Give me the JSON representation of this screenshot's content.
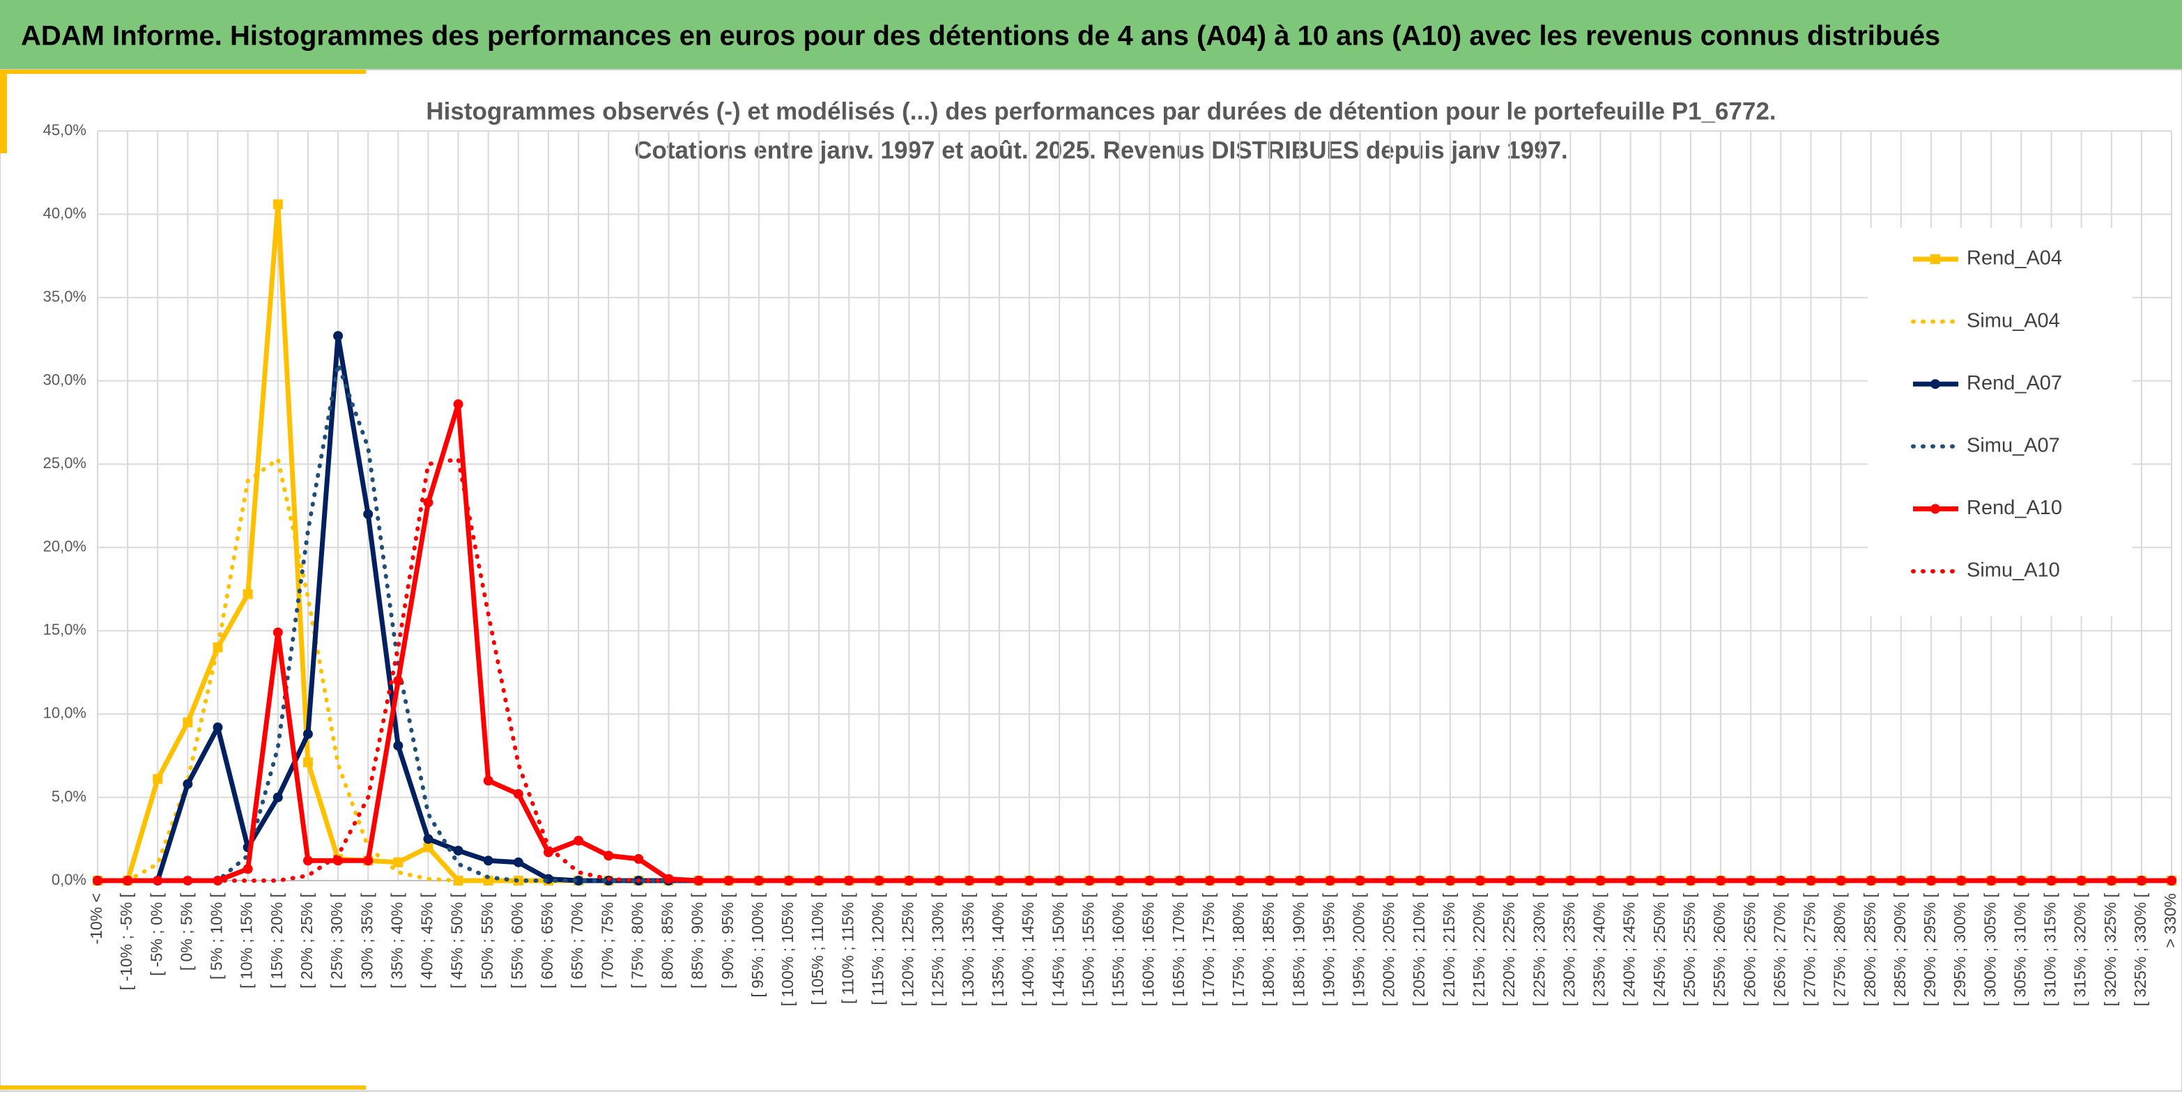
{
  "header": {
    "title": "ADAM Informe. Histogrammes des performances en euros pour des détentions de 4 ans (A04) à 10 ans (A10) avec les revenus connus distribués"
  },
  "chart_data": {
    "type": "line",
    "title_lines": [
      "Histogrammes observés (-) et modélisés (...) des performances par durées de détention pour le portefeuille P1_6772.",
      "Cotations entre janv. 1997 et août. 2025. Revenus DISTRIBUES depuis janv 1997."
    ],
    "categories": [
      "-10% <",
      "[ -10% ; -5% [",
      "[ -5% ; 0% [",
      "[ 0% ; 5% [",
      "[ 5% ; 10% [",
      "[ 10% ; 15% [",
      "[ 15% ; 20% [",
      "[ 20% ; 25% [",
      "[ 25% ; 30% [",
      "[ 30% ; 35% [",
      "[ 35% ; 40% [",
      "[ 40% ; 45% [",
      "[ 45% ; 50% [",
      "[ 50% ; 55% [",
      "[ 55% ; 60% [",
      "[ 60% ; 65% [",
      "[ 65% ; 70% [",
      "[ 70% ; 75% [",
      "[ 75% ; 80% [",
      "[ 80% ; 85% [",
      "[ 85% ; 90% [",
      "[ 90% ; 95% [",
      "[ 95% ; 100% [",
      "[ 100% ; 105% [",
      "[ 105% ; 110% [",
      "[ 110% ; 115% [",
      "[ 115% ; 120% [",
      "[ 120% ; 125% [",
      "[ 125% ; 130% [",
      "[ 130% ; 135% [",
      "[ 135% ; 140% [",
      "[ 140% ; 145% [",
      "[ 145% ; 150% [",
      "[ 150% ; 155% [",
      "[ 155% ; 160% [",
      "[ 160% ; 165% [",
      "[ 165% ; 170% [",
      "[ 170% ; 175% [",
      "[ 175% ; 180% [",
      "[ 180% ; 185% [",
      "[ 185% ; 190% [",
      "[ 190% ; 195% [",
      "[ 195% ; 200% [",
      "[ 200% ; 205% [",
      "[ 205% ; 210% [",
      "[ 210% ; 215% [",
      "[ 215% ; 220% [",
      "[ 220% ; 225% [",
      "[ 225% ; 230% [",
      "[ 230% ; 235% [",
      "[ 235% ; 240% [",
      "[ 240% ; 245% [",
      "[ 245% ; 250% [",
      "[ 250% ; 255% [",
      "[ 255% ; 260% [",
      "[ 260% ; 265% [",
      "[ 265% ; 270% [",
      "[ 270% ; 275% [",
      "[ 275% ; 280% [",
      "[ 280% ; 285% [",
      "[ 285% ; 290% [",
      "[ 290% ; 295% [",
      "[ 295% ; 300% [",
      "[ 300% ; 305% [",
      "[ 305% ; 310% [",
      "[ 310% ; 315% [",
      "[ 315% ; 320% [",
      "[ 320% ; 325% [",
      "[ 325% ; 330% [",
      "> 330%"
    ],
    "series": [
      {
        "name": "Rend_A04",
        "color": "#FFC000",
        "dash": "solid",
        "marker": "square",
        "values": [
          0,
          0,
          6.1,
          9.5,
          14,
          17.2,
          40.6,
          7.1,
          1.3,
          1.2,
          1.1,
          2,
          0,
          0,
          0,
          0,
          0,
          0,
          0,
          0,
          0,
          0,
          0,
          0,
          0,
          0,
          0,
          0,
          0,
          0,
          0,
          0,
          0,
          0,
          0,
          0,
          0,
          0,
          0,
          0,
          0,
          0,
          0,
          0,
          0,
          0,
          0,
          0,
          0,
          0,
          0,
          0,
          0,
          0,
          0,
          0,
          0,
          0,
          0,
          0,
          0,
          0,
          0,
          0,
          0,
          0,
          0,
          0,
          0,
          0
        ]
      },
      {
        "name": "Simu_A04",
        "color": "#FFC000",
        "dash": "dotted",
        "marker": null,
        "values": [
          0,
          0,
          1,
          6,
          14,
          24,
          25.3,
          17,
          7,
          2,
          0.5,
          0.1,
          0,
          0,
          0,
          0,
          0,
          0,
          0,
          0,
          0,
          0,
          0,
          0,
          0,
          0,
          0,
          0,
          0,
          0,
          0,
          0,
          0,
          0,
          0,
          0,
          0,
          0,
          0,
          0,
          0,
          0,
          0,
          0,
          0,
          0,
          0,
          0,
          0,
          0,
          0,
          0,
          0,
          0,
          0,
          0,
          0,
          0,
          0,
          0,
          0,
          0,
          0,
          0,
          0,
          0,
          0,
          0,
          0,
          0
        ]
      },
      {
        "name": "Rend_A07",
        "color": "#002060",
        "dash": "solid",
        "marker": "circle",
        "values": [
          0,
          0,
          0,
          5.8,
          9.2,
          2,
          5,
          8.8,
          32.7,
          22,
          8.1,
          2.5,
          1.8,
          1.2,
          1.1,
          0.1,
          0,
          0,
          0,
          0,
          0,
          0,
          0,
          0,
          0,
          0,
          0,
          0,
          0,
          0,
          0,
          0,
          0,
          0,
          0,
          0,
          0,
          0,
          0,
          0,
          0,
          0,
          0,
          0,
          0,
          0,
          0,
          0,
          0,
          0,
          0,
          0,
          0,
          0,
          0,
          0,
          0,
          0,
          0,
          0,
          0,
          0,
          0,
          0,
          0,
          0,
          0,
          0,
          0,
          0
        ]
      },
      {
        "name": "Simu_A07",
        "color": "#1F4E79",
        "dash": "dotted",
        "marker": null,
        "values": [
          0,
          0,
          0,
          0,
          0,
          1.5,
          8,
          21,
          31,
          26,
          13,
          4,
          1,
          0.2,
          0,
          0,
          0,
          0,
          0,
          0,
          0,
          0,
          0,
          0,
          0,
          0,
          0,
          0,
          0,
          0,
          0,
          0,
          0,
          0,
          0,
          0,
          0,
          0,
          0,
          0,
          0,
          0,
          0,
          0,
          0,
          0,
          0,
          0,
          0,
          0,
          0,
          0,
          0,
          0,
          0,
          0,
          0,
          0,
          0,
          0,
          0,
          0,
          0,
          0,
          0,
          0,
          0,
          0,
          0,
          0
        ]
      },
      {
        "name": "Rend_A10",
        "color": "#FF0000",
        "dash": "solid",
        "marker": "circle",
        "values": [
          0,
          0,
          0,
          0,
          0,
          0.7,
          14.9,
          1.2,
          1.2,
          1.2,
          12,
          22.7,
          28.6,
          6,
          5.2,
          1.7,
          2.4,
          1.5,
          1.3,
          0.1,
          0,
          0,
          0,
          0,
          0,
          0,
          0,
          0,
          0,
          0,
          0,
          0,
          0,
          0,
          0,
          0,
          0,
          0,
          0,
          0,
          0,
          0,
          0,
          0,
          0,
          0,
          0,
          0,
          0,
          0,
          0,
          0,
          0,
          0,
          0,
          0,
          0,
          0,
          0,
          0,
          0,
          0,
          0,
          0,
          0,
          0,
          0,
          0,
          0,
          0
        ]
      },
      {
        "name": "Simu_A10",
        "color": "#FF0000",
        "dash": "dotted",
        "marker": null,
        "values": [
          0,
          0,
          0,
          0,
          0,
          0,
          0,
          0.3,
          1.5,
          5,
          14,
          25,
          25.3,
          16,
          7,
          2,
          0.5,
          0.1,
          0,
          0,
          0,
          0,
          0,
          0,
          0,
          0,
          0,
          0,
          0,
          0,
          0,
          0,
          0,
          0,
          0,
          0,
          0,
          0,
          0,
          0,
          0,
          0,
          0,
          0,
          0,
          0,
          0,
          0,
          0,
          0,
          0,
          0,
          0,
          0,
          0,
          0,
          0,
          0,
          0,
          0,
          0,
          0,
          0,
          0,
          0,
          0,
          0,
          0,
          0,
          0
        ]
      }
    ],
    "ylim": [
      0,
      45
    ],
    "yticks": [
      {
        "value": 0,
        "label": "0,0%"
      },
      {
        "value": 5,
        "label": "5,0%"
      },
      {
        "value": 10,
        "label": "10,0%"
      },
      {
        "value": 15,
        "label": "15,0%"
      },
      {
        "value": 20,
        "label": "20,0%"
      },
      {
        "value": 25,
        "label": "25,0%"
      },
      {
        "value": 30,
        "label": "30,0%"
      },
      {
        "value": 35,
        "label": "35,0%"
      },
      {
        "value": 40,
        "label": "40,0%"
      },
      {
        "value": 45,
        "label": "45,0%"
      }
    ],
    "grid": true,
    "legend": "right"
  }
}
